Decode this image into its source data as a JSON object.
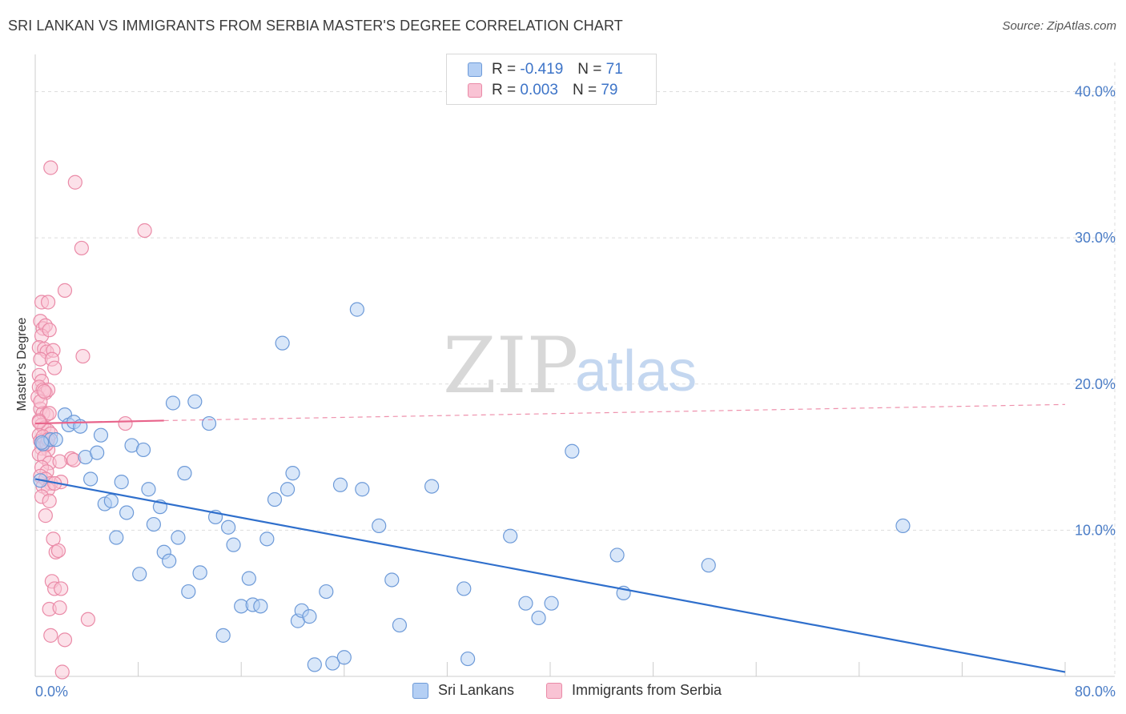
{
  "header": {
    "title": "SRI LANKAN VS IMMIGRANTS FROM SERBIA MASTER'S DEGREE CORRELATION CHART",
    "source": "Source: ZipAtlas.com"
  },
  "legend_top": {
    "rows": [
      {
        "r_label": "R =",
        "r_value": "-0.419",
        "n_label": "N =",
        "n_value": "71"
      },
      {
        "r_label": "R =",
        "r_value": "0.003",
        "n_label": "N =",
        "n_value": "79"
      }
    ]
  },
  "legend_bottom": {
    "series1": "Sri Lankans",
    "series2": "Immigrants from Serbia"
  },
  "watermark": {
    "part1": "ZIP",
    "part2": "atlas"
  },
  "colors": {
    "blue_fill": "#b4cff4",
    "blue_stroke": "#6d9ad8",
    "blue_line": "#2f6fcc",
    "pink_fill": "#f9c3d4",
    "pink_stroke": "#ea8aa7",
    "pink_line": "#e8638a",
    "tick_text": "#4a7cc6",
    "grid": "#dddddd"
  },
  "chart_data": {
    "type": "scatter",
    "title": "SRI LANKAN VS IMMIGRANTS FROM SERBIA MASTER'S DEGREE CORRELATION CHART",
    "xlabel": "",
    "ylabel": "Master's Degree",
    "xlim": [
      0,
      80
    ],
    "ylim": [
      0,
      42
    ],
    "x_tick_labels": [
      "0.0%",
      "80.0%"
    ],
    "y_ticks": [
      10,
      20,
      30,
      40
    ],
    "y_tick_labels": [
      "10.0%",
      "20.0%",
      "30.0%",
      "40.0%"
    ],
    "grid": true,
    "series": [
      {
        "name": "Sri Lankans",
        "color": "#6d9ad8",
        "r": -0.419,
        "n": 71,
        "trendline": {
          "x": [
            0,
            80
          ],
          "y": [
            13.5,
            0.3
          ],
          "style": "solid"
        },
        "points": [
          [
            0.4,
            13.4
          ],
          [
            0.6,
            15.9
          ],
          [
            1.2,
            16.2
          ],
          [
            1.6,
            16.2
          ],
          [
            2.3,
            17.9
          ],
          [
            2.6,
            17.2
          ],
          [
            3.0,
            17.4
          ],
          [
            3.5,
            17.1
          ],
          [
            3.9,
            15.0
          ],
          [
            4.3,
            13.5
          ],
          [
            4.8,
            15.3
          ],
          [
            5.1,
            16.5
          ],
          [
            5.4,
            11.8
          ],
          [
            5.9,
            12.0
          ],
          [
            6.3,
            9.5
          ],
          [
            6.7,
            13.3
          ],
          [
            7.1,
            11.2
          ],
          [
            7.5,
            15.8
          ],
          [
            8.1,
            7.0
          ],
          [
            8.4,
            15.5
          ],
          [
            8.8,
            12.8
          ],
          [
            9.2,
            10.4
          ],
          [
            9.7,
            11.6
          ],
          [
            10.0,
            8.5
          ],
          [
            10.4,
            7.9
          ],
          [
            10.7,
            18.7
          ],
          [
            11.1,
            9.5
          ],
          [
            11.6,
            13.9
          ],
          [
            11.9,
            5.8
          ],
          [
            12.4,
            18.8
          ],
          [
            12.8,
            7.1
          ],
          [
            13.5,
            17.3
          ],
          [
            14.0,
            10.9
          ],
          [
            14.6,
            2.8
          ],
          [
            15.0,
            10.2
          ],
          [
            15.4,
            9.0
          ],
          [
            16.0,
            4.8
          ],
          [
            16.6,
            6.7
          ],
          [
            16.9,
            4.9
          ],
          [
            17.5,
            4.8
          ],
          [
            18.0,
            9.4
          ],
          [
            18.6,
            12.1
          ],
          [
            19.2,
            22.8
          ],
          [
            19.6,
            12.8
          ],
          [
            20.0,
            13.9
          ],
          [
            20.4,
            3.8
          ],
          [
            20.7,
            4.5
          ],
          [
            21.3,
            4.1
          ],
          [
            21.7,
            0.8
          ],
          [
            22.6,
            5.8
          ],
          [
            23.1,
            0.9
          ],
          [
            23.7,
            13.1
          ],
          [
            24.0,
            1.3
          ],
          [
            25.0,
            25.1
          ],
          [
            25.4,
            12.8
          ],
          [
            26.7,
            10.3
          ],
          [
            27.7,
            6.6
          ],
          [
            28.3,
            3.5
          ],
          [
            30.8,
            13.0
          ],
          [
            33.3,
            6.0
          ],
          [
            33.6,
            1.2
          ],
          [
            36.9,
            9.6
          ],
          [
            38.1,
            5.0
          ],
          [
            39.1,
            4.0
          ],
          [
            40.1,
            5.0
          ],
          [
            41.7,
            15.4
          ],
          [
            45.2,
            8.3
          ],
          [
            45.7,
            5.7
          ],
          [
            52.3,
            7.6
          ],
          [
            67.4,
            10.3
          ],
          [
            0.5,
            16.0
          ]
        ]
      },
      {
        "name": "Immigrants from Serbia",
        "color": "#ea8aa7",
        "r": 0.003,
        "n": 79,
        "trendline": {
          "x": [
            0,
            10
          ],
          "y": [
            17.3,
            17.5
          ],
          "style": "solid",
          "dashed_extension": {
            "x": [
              10,
              80
            ],
            "y": [
              17.5,
              18.6
            ]
          }
        },
        "points": [
          [
            1.2,
            34.8
          ],
          [
            3.1,
            33.8
          ],
          [
            8.5,
            30.5
          ],
          [
            3.6,
            29.3
          ],
          [
            2.3,
            26.4
          ],
          [
            0.5,
            25.6
          ],
          [
            1.0,
            25.6
          ],
          [
            0.4,
            24.3
          ],
          [
            0.6,
            23.8
          ],
          [
            0.8,
            24.0
          ],
          [
            0.5,
            23.3
          ],
          [
            1.1,
            23.7
          ],
          [
            0.3,
            22.5
          ],
          [
            0.7,
            22.4
          ],
          [
            0.9,
            22.2
          ],
          [
            1.4,
            22.3
          ],
          [
            0.4,
            21.7
          ],
          [
            1.3,
            21.7
          ],
          [
            1.5,
            21.1
          ],
          [
            3.7,
            21.9
          ],
          [
            0.3,
            20.6
          ],
          [
            0.5,
            20.2
          ],
          [
            0.3,
            19.8
          ],
          [
            0.6,
            19.6
          ],
          [
            0.8,
            19.4
          ],
          [
            1.0,
            19.6
          ],
          [
            0.2,
            19.1
          ],
          [
            0.4,
            18.3
          ],
          [
            0.6,
            18.0
          ],
          [
            0.9,
            17.9
          ],
          [
            1.1,
            18.0
          ],
          [
            0.3,
            17.5
          ],
          [
            0.5,
            17.2
          ],
          [
            0.7,
            17.0
          ],
          [
            1.0,
            16.8
          ],
          [
            1.2,
            16.6
          ],
          [
            0.3,
            16.5
          ],
          [
            0.4,
            16.1
          ],
          [
            0.6,
            16.0
          ],
          [
            0.8,
            15.8
          ],
          [
            0.5,
            15.6
          ],
          [
            1.0,
            15.5
          ],
          [
            0.3,
            15.2
          ],
          [
            0.7,
            15.0
          ],
          [
            1.1,
            14.6
          ],
          [
            0.5,
            14.3
          ],
          [
            0.9,
            14.0
          ],
          [
            0.4,
            13.7
          ],
          [
            0.8,
            13.5
          ],
          [
            1.2,
            13.2
          ],
          [
            2.0,
            13.3
          ],
          [
            0.6,
            13.0
          ],
          [
            1.0,
            12.8
          ],
          [
            0.5,
            12.3
          ],
          [
            1.1,
            12.0
          ],
          [
            0.8,
            11.0
          ],
          [
            1.4,
            9.4
          ],
          [
            1.6,
            8.5
          ],
          [
            1.8,
            8.6
          ],
          [
            1.3,
            6.5
          ],
          [
            1.5,
            6.0
          ],
          [
            2.0,
            6.0
          ],
          [
            1.1,
            4.6
          ],
          [
            1.9,
            4.7
          ],
          [
            1.2,
            2.8
          ],
          [
            2.3,
            2.5
          ],
          [
            4.1,
            3.9
          ],
          [
            2.1,
            0.3
          ],
          [
            2.8,
            14.9
          ],
          [
            3.0,
            14.8
          ],
          [
            1.9,
            14.7
          ],
          [
            7.0,
            17.3
          ],
          [
            0.3,
            17.4
          ],
          [
            0.6,
            16.4
          ],
          [
            0.9,
            15.9
          ],
          [
            1.5,
            13.2
          ],
          [
            0.4,
            18.8
          ],
          [
            0.7,
            19.5
          ],
          [
            1.0,
            16.2
          ]
        ]
      }
    ]
  }
}
